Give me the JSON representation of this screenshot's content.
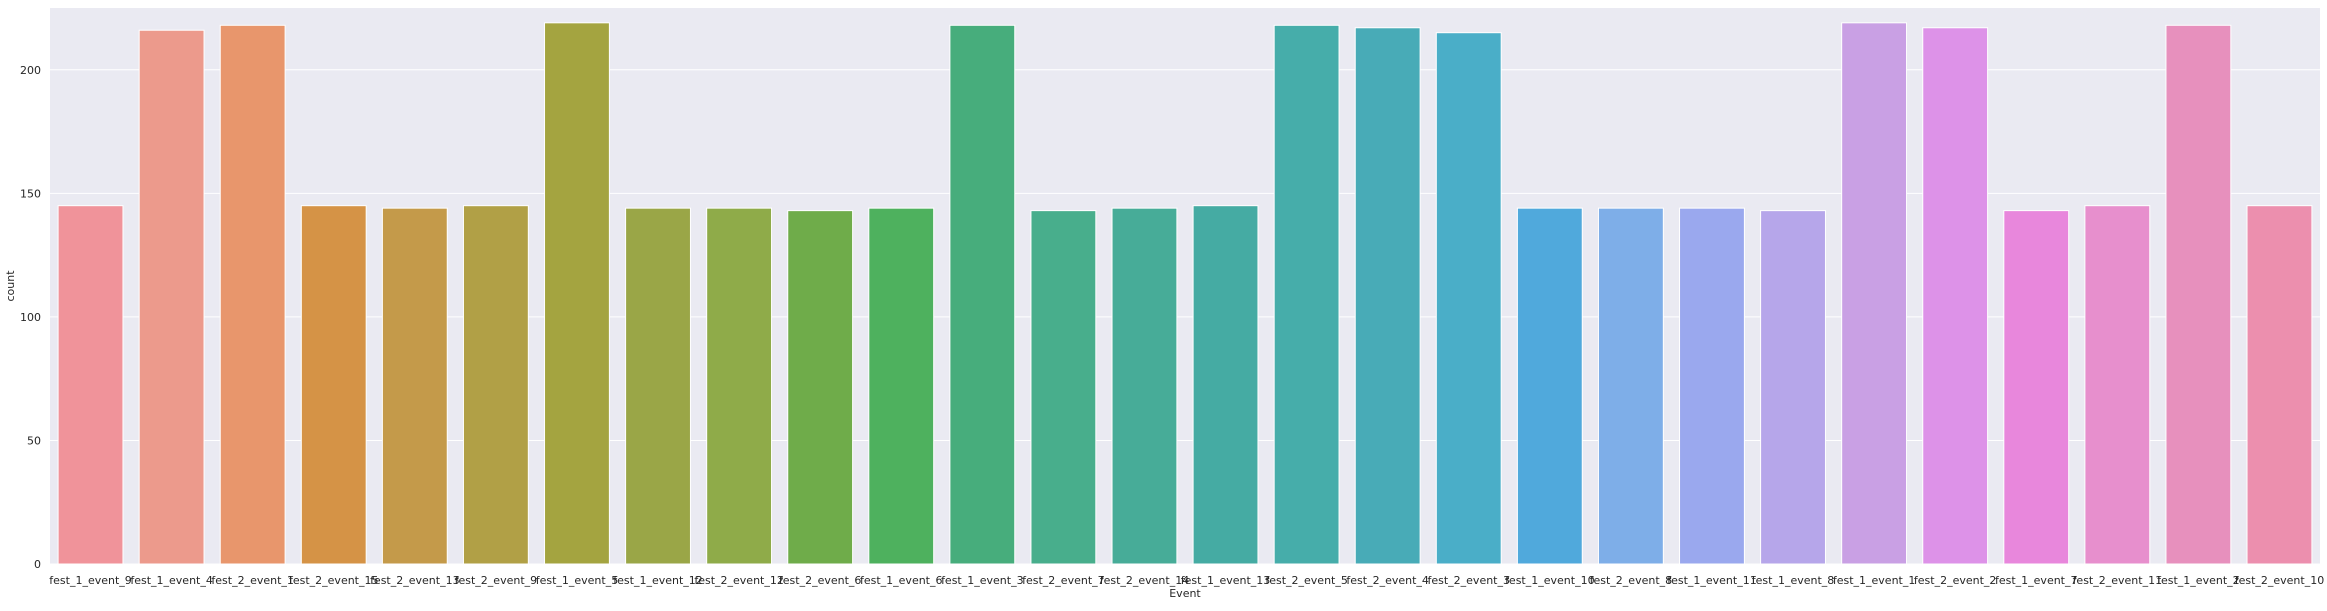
{
  "chart_data": {
    "type": "bar",
    "xlabel": "Event",
    "ylabel": "count",
    "ylim": [
      0,
      225
    ],
    "yticks": [
      0,
      50,
      100,
      150,
      200
    ],
    "grid": true,
    "categories": [
      "fest_1_event_9",
      "fest_1_event_4",
      "fest_2_event_1",
      "fest_2_event_15",
      "fest_2_event_13",
      "fest_2_event_9",
      "fest_1_event_5",
      "fest_1_event_12",
      "fest_2_event_12",
      "fest_2_event_6",
      "fest_1_event_6",
      "fest_1_event_3",
      "fest_2_event_7",
      "fest_2_event_14",
      "fest_1_event_13",
      "fest_2_event_5",
      "fest_2_event_4",
      "fest_2_event_3",
      "fest_1_event_10",
      "fest_2_event_8",
      "fest_1_event_11",
      "fest_1_event_8",
      "fest_1_event_1",
      "fest_2_event_2",
      "fest_1_event_7",
      "fest_2_event_11",
      "fest_1_event_2",
      "fest_2_event_10"
    ],
    "values": [
      145,
      216,
      218,
      145,
      144,
      145,
      219,
      144,
      144,
      143,
      144,
      218,
      143,
      144,
      145,
      218,
      217,
      215,
      144,
      144,
      144,
      143,
      219,
      217,
      143,
      145,
      218,
      145
    ],
    "colors": [
      "#f0939a",
      "#ec9a8c",
      "#e8966c",
      "#d59346",
      "#c49a4a",
      "#b1a046",
      "#a4a440",
      "#9aa647",
      "#8fab49",
      "#6fac4a",
      "#4eb15e",
      "#47ad7c",
      "#48ae8c",
      "#47ac98",
      "#45aba3",
      "#46adaa",
      "#48abb7",
      "#4aaec8",
      "#50a9dc",
      "#7eaee8",
      "#9aa8ee",
      "#b6a6ea",
      "#c9a0e4",
      "#dd92e8",
      "#e887dc",
      "#e78fcd",
      "#e790bd",
      "#ec8fae"
    ]
  }
}
